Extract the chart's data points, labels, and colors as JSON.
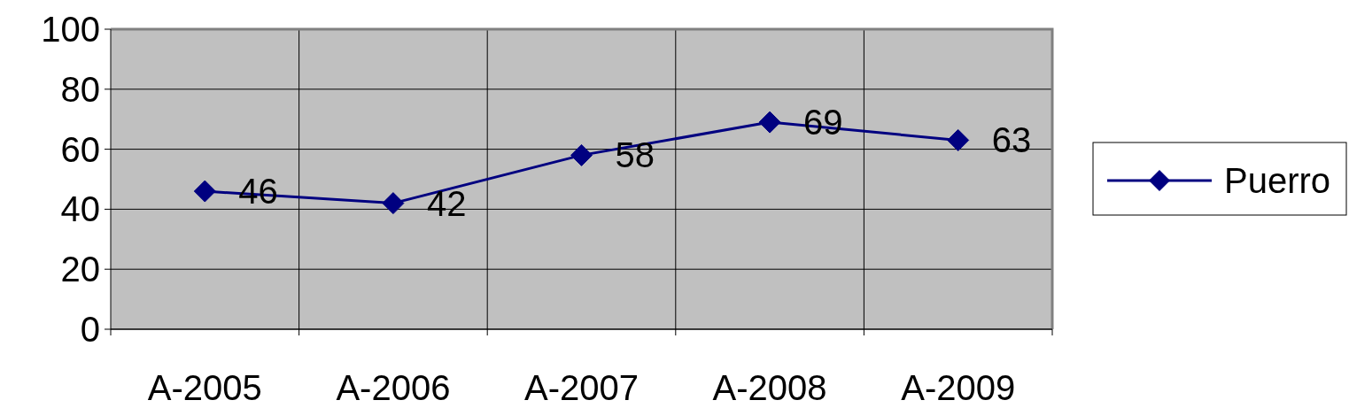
{
  "chart_data": {
    "type": "line",
    "categories": [
      "A-2005",
      "A-2006",
      "A-2007",
      "A-2008",
      "A-2009"
    ],
    "series": [
      {
        "name": "Puerro",
        "color": "#000080",
        "values": [
          46,
          42,
          58,
          69,
          63
        ]
      }
    ],
    "ylim": [
      0,
      100
    ],
    "yticks": [
      0,
      20,
      40,
      60,
      80,
      100
    ],
    "grid": true,
    "legend": "right",
    "marker": "diamond",
    "data_labels": true
  }
}
